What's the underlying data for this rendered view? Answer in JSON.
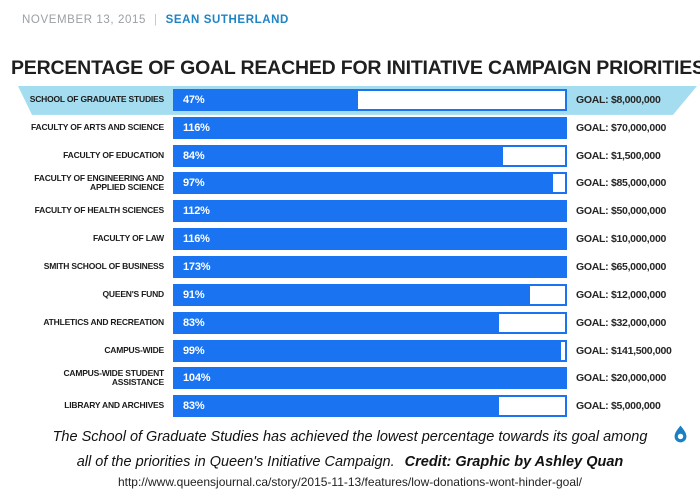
{
  "header": {
    "date": "NOVEMBER 13, 2015",
    "separator": "|",
    "author": "SEAN SUTHERLAND"
  },
  "title": "PERCENTAGE OF GOAL REACHED FOR INITIATIVE CAMPAIGN PRIORITIES",
  "chart_data": {
    "type": "bar",
    "orientation": "horizontal",
    "title": "PERCENTAGE OF GOAL REACHED FOR INITIATIVE CAMPAIGN PRIORITIES",
    "categories": [
      "SCHOOL OF GRADUATE STUDIES",
      "FACULTY OF ARTS AND SCIENCE",
      "FACULTY OF EDUCATION",
      "FACULTY OF ENGINEERING AND APPLIED SCIENCE",
      "FACULTY OF HEALTH SCIENCES",
      "FACULTY OF LAW",
      "SMITH SCHOOL OF BUSINESS",
      "QUEEN'S FUND",
      "ATHLETICS AND RECREATION",
      "CAMPUS-WIDE",
      "CAMPUS-WIDE STUDENT ASSISTANCE",
      "LIBRARY AND ARCHIVES"
    ],
    "values": [
      47,
      116,
      84,
      97,
      112,
      116,
      173,
      91,
      83,
      99,
      104,
      83
    ],
    "value_labels": [
      "47%",
      "116%",
      "84%",
      "97%",
      "112%",
      "116%",
      "173%",
      "91%",
      "83%",
      "99%",
      "104%",
      "83%"
    ],
    "goals": [
      "GOAL: $8,000,000",
      "GOAL: $70,000,000",
      "GOAL: $1,500,000",
      "GOAL: $85,000,000",
      "GOAL: $50,000,000",
      "GOAL: $10,000,000",
      "GOAL: $65,000,000",
      "GOAL: $12,000,000",
      "GOAL: $32,000,000",
      "GOAL: $141,500,000",
      "GOAL: $20,000,000",
      "GOAL: $5,000,000"
    ],
    "xlim": [
      0,
      100
    ],
    "highlighted_index": 0,
    "bar_color": "#1a73f0",
    "highlight_color": "#a5ddf0",
    "legend": "none",
    "grid": false
  },
  "caption": {
    "line1": "The School of Graduate Studies has achieved the lowest percentage towards its goal among",
    "line2": "all of the priorities in Queen's Initiative Campaign.",
    "credit": "Credit:  Graphic by Ashley Quan",
    "url": "http://www.queensjournal.ca/story/2015-11-13/features/low-donations-wont-hinder-goal/"
  },
  "icons": {
    "droplet": "water-drop-logo",
    "droplet_color": "#1a7fc4"
  }
}
